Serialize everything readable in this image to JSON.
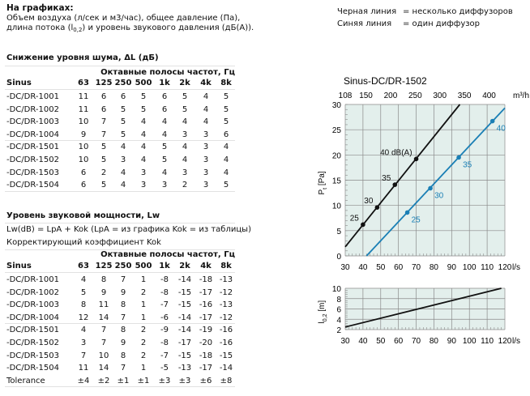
{
  "header": {
    "title": "На графиках:",
    "line1": "Объем воздуха (л/сек и м3/час), общее давление (Па),",
    "line2_pre": "длина потока (l",
    "line2_sub": "0,2",
    "line2_post": ") и уровень звукового давления (дБ(A))."
  },
  "legend": [
    {
      "label": "Черная линия",
      "desc": "= несколько диффузоров"
    },
    {
      "label": "Синяя линия",
      "desc": "= один диффузор"
    }
  ],
  "noise_table": {
    "title": "Снижение уровня шума, ΔL (дБ)",
    "band_header": "Октавные полосы частот, Гц",
    "columns": [
      "Sinus",
      "63",
      "125",
      "250",
      "500",
      "1k",
      "2k",
      "4k",
      "8k"
    ],
    "rows": [
      [
        "-DC/DR-1001",
        "11",
        "6",
        "6",
        "5",
        "6",
        "5",
        "4",
        "5"
      ],
      [
        "-DC/DR-1002",
        "11",
        "6",
        "5",
        "5",
        "6",
        "5",
        "4",
        "5"
      ],
      [
        "-DC/DR-1003",
        "10",
        "7",
        "5",
        "4",
        "4",
        "4",
        "4",
        "5"
      ],
      [
        "-DC/DR-1004",
        "9",
        "7",
        "5",
        "4",
        "4",
        "3",
        "3",
        "6"
      ],
      [
        "-DC/DR-1501",
        "10",
        "5",
        "4",
        "4",
        "5",
        "4",
        "3",
        "4"
      ],
      [
        "-DC/DR-1502",
        "10",
        "5",
        "3",
        "4",
        "5",
        "4",
        "3",
        "4"
      ],
      [
        "-DC/DR-1503",
        "6",
        "2",
        "4",
        "3",
        "4",
        "3",
        "3",
        "4"
      ],
      [
        "-DC/DR-1504",
        "6",
        "5",
        "4",
        "3",
        "3",
        "2",
        "3",
        "5"
      ]
    ]
  },
  "power_table": {
    "title": "Уровень звуковой мощности, Lw",
    "formula": "Lw(dB) = LpA + Kok (LpA = из графика Kok = из таблицы)",
    "subtitle": "Корректирующий коэффициент Kok",
    "band_header": "Октавные полосы частот, Гц",
    "columns": [
      "Sinus",
      "63",
      "125",
      "250",
      "500",
      "1k",
      "2k",
      "4k",
      "8k"
    ],
    "rows": [
      [
        "-DC/DR-1001",
        "4",
        "8",
        "7",
        "1",
        "-8",
        "-14",
        "-18",
        "-13"
      ],
      [
        "-DC/DR-1002",
        "5",
        "9",
        "9",
        "2",
        "-8",
        "-15",
        "-17",
        "-12"
      ],
      [
        "-DC/DR-1003",
        "8",
        "11",
        "8",
        "1",
        "-7",
        "-15",
        "-16",
        "-13"
      ],
      [
        "-DC/DR-1004",
        "12",
        "14",
        "7",
        "1",
        "-6",
        "-14",
        "-17",
        "-12"
      ],
      [
        "-DC/DR-1501",
        "4",
        "7",
        "8",
        "2",
        "-9",
        "-14",
        "-19",
        "-16"
      ],
      [
        "-DC/DR-1502",
        "3",
        "7",
        "9",
        "2",
        "-8",
        "-17",
        "-20",
        "-16"
      ],
      [
        "-DC/DR-1503",
        "7",
        "10",
        "8",
        "2",
        "-7",
        "-15",
        "-18",
        "-15"
      ],
      [
        "-DC/DR-1504",
        "11",
        "14",
        "7",
        "1",
        "-5",
        "-13",
        "-17",
        "-14"
      ],
      [
        "Tolerance",
        "±4",
        "±2",
        "±1",
        "±1",
        "±3",
        "±3",
        "±6",
        "±8"
      ]
    ]
  },
  "chart_data": [
    {
      "type": "line",
      "title": "Sinus-DC/DR-1502",
      "xlabel": "l/s",
      "ylabel": "Pt [Pa]",
      "ylabel_main": "P",
      "ylabel_sub": "t",
      "ylabel_unit": "[Pa]",
      "x2label": "m³/h",
      "xlim": [
        30,
        120
      ],
      "ylim": [
        0,
        30
      ],
      "grid": true,
      "xticks": [
        "30",
        "40",
        "50",
        "60",
        "70",
        "80",
        "90",
        "100",
        "110",
        "120"
      ],
      "yticks": [
        "0",
        "5",
        "10",
        "15",
        "20",
        "25",
        "30"
      ],
      "x2ticks": [
        {
          "label": "108",
          "x": 30
        },
        {
          "label": "150",
          "x": 41.67
        },
        {
          "label": "200",
          "x": 55.56
        },
        {
          "label": "250",
          "x": 69.44
        },
        {
          "label": "300",
          "x": 83.33
        },
        {
          "label": "350",
          "x": 97.22
        },
        {
          "label": "400",
          "x": 111.11
        }
      ],
      "series": [
        {
          "color": "#111111",
          "line": [
            [
              30,
              1.8
            ],
            [
              94.6,
              30
            ]
          ],
          "points": [
            {
              "x": 40,
              "y": 6.2,
              "label": "25"
            },
            {
              "x": 48,
              "y": 9.6,
              "label": "30"
            },
            {
              "x": 58,
              "y": 14.1,
              "label": "35"
            },
            {
              "x": 70,
              "y": 19.2,
              "label": "40 dB(A)"
            }
          ]
        },
        {
          "color": "#1a7fb5",
          "line": [
            [
              42,
              0
            ],
            [
              120,
              29.3
            ]
          ],
          "points": [
            {
              "x": 65,
              "y": 8.6,
              "label": "25"
            },
            {
              "x": 78,
              "y": 13.4,
              "label": "30"
            },
            {
              "x": 94,
              "y": 19.5,
              "label": "35"
            },
            {
              "x": 113,
              "y": 26.7,
              "label": "40"
            }
          ]
        }
      ]
    },
    {
      "type": "line",
      "xlabel": "l/s",
      "ylabel_main": "l",
      "ylabel_sub": "0,2",
      "ylabel_unit": "[m]",
      "xlim": [
        30,
        120
      ],
      "ylim": [
        2,
        10
      ],
      "grid": true,
      "xticks": [
        "30",
        "40",
        "50",
        "60",
        "70",
        "80",
        "90",
        "100",
        "110",
        "120"
      ],
      "yticks": [
        "2",
        "4",
        "6",
        "8",
        "10"
      ],
      "series": [
        {
          "color": "#111111",
          "line": [
            [
              30,
              2.5
            ],
            [
              118,
              10
            ]
          ]
        }
      ]
    }
  ],
  "colors": {
    "plot_bg": "#e3efec",
    "grid": "#8a8a8a",
    "blue": "#1a7fb5"
  }
}
